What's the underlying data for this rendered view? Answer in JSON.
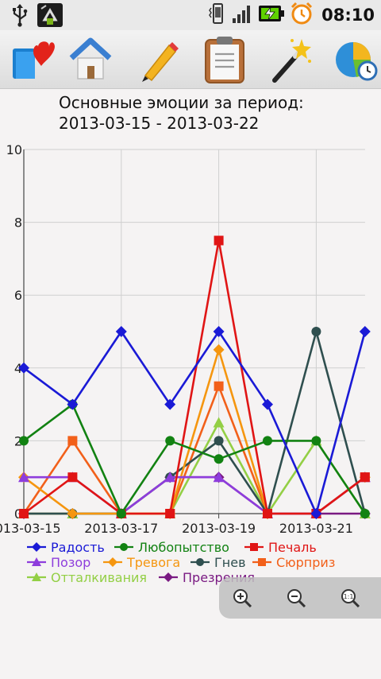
{
  "status_bar": {
    "time": "08:10",
    "icons": [
      "usb-icon",
      "android-debug-icon",
      "vibrate-icon",
      "signal-icon",
      "battery-charging-icon",
      "alarm-clock-icon"
    ]
  },
  "toolbar": {
    "buttons": [
      "diary-heart-icon",
      "home-icon",
      "pencil-icon",
      "clipboard-icon",
      "magic-wand-icon",
      "pie-chart-clock-icon"
    ]
  },
  "chart_title": {
    "line1": "Основные эмоции за период:",
    "line2": "2013-03-15 - 2013-03-22"
  },
  "chart_data": {
    "type": "line",
    "x": [
      "2013-03-15",
      "2013-03-16",
      "2013-03-17",
      "2013-03-18",
      "2013-03-19",
      "2013-03-20",
      "2013-03-21",
      "2013-03-22"
    ],
    "x_tick_labels": [
      "2013-03-15",
      "2013-03-17",
      "2013-03-19",
      "2013-03-21"
    ],
    "y_tick_labels": [
      "0",
      "2",
      "4",
      "6",
      "8",
      "10"
    ],
    "ylim": [
      0,
      10
    ],
    "grid": true,
    "legend_position": "bottom",
    "series": [
      {
        "name": "Радость",
        "color": "#1a1ad6",
        "marker": "diamond",
        "values": [
          4,
          3,
          5,
          3,
          5,
          3,
          0,
          5
        ]
      },
      {
        "name": "Любопытство",
        "color": "#128212",
        "marker": "circle",
        "values": [
          2,
          3,
          0,
          2,
          1.5,
          2,
          2,
          0
        ]
      },
      {
        "name": "Печаль",
        "color": "#e01515",
        "marker": "square",
        "values": [
          0,
          1,
          0,
          0,
          7.5,
          0,
          0,
          1
        ]
      },
      {
        "name": "Позор",
        "color": "#8e3ddc",
        "marker": "triangle",
        "values": [
          1,
          1,
          0,
          1,
          1,
          0,
          0,
          1
        ]
      },
      {
        "name": "Тревога",
        "color": "#f5960f",
        "marker": "diamond",
        "values": [
          1,
          0,
          0,
          0,
          4.5,
          0,
          0,
          1
        ]
      },
      {
        "name": "Гнев",
        "color": "#2f4f4f",
        "marker": "circle",
        "values": [
          0,
          0,
          0,
          1,
          2,
          0,
          5,
          0
        ]
      },
      {
        "name": "Сюрприз",
        "color": "#f2601a",
        "marker": "square",
        "values": [
          0,
          2,
          0,
          0,
          3.5,
          0,
          0,
          1
        ]
      },
      {
        "name": "Отталкивания",
        "color": "#93cf45",
        "marker": "triangle",
        "values": [
          0,
          0,
          0,
          0,
          2.5,
          0,
          2,
          0
        ]
      },
      {
        "name": "Презрения",
        "color": "#7a1a82",
        "marker": "diamond",
        "values": [
          0,
          0,
          0,
          1,
          1,
          0,
          0,
          0
        ]
      }
    ]
  },
  "zoom_controls": {
    "buttons": [
      "zoom-in-icon",
      "zoom-out-icon",
      "zoom-reset-icon"
    ]
  }
}
